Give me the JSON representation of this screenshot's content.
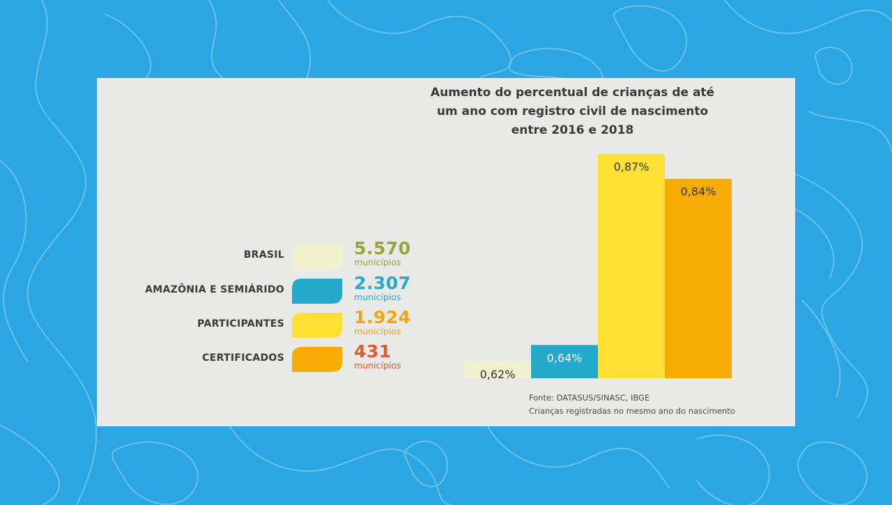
{
  "colors": {
    "background": "#2ba6e3",
    "panel": "#e9e9e8",
    "brasil": "#f1f0cf",
    "amazonia": "#22a9cc",
    "participantes": "#fde033",
    "certificados": "#f8ac06",
    "brasil_text": "#9aa437",
    "amazonia_text": "#26a9cf",
    "participantes_text": "#f3a70c",
    "certificados_text": "#e35a2a"
  },
  "legend": [
    {
      "label": "BRASIL",
      "value": "5.570",
      "unit": "municípios"
    },
    {
      "label": "AMAZÔNIA E SEMIÁRIDO",
      "value": "2.307",
      "unit": "municípios"
    },
    {
      "label": "PARTICIPANTES",
      "value": "1.924",
      "unit": "municípios"
    },
    {
      "label": "CERTIFICADOS",
      "value": "431",
      "unit": "municípios"
    }
  ],
  "chart_data": {
    "type": "bar",
    "title": "Aumento do percentual de crianças de até um ano com registro civil de nascimento entre 2016 e 2018",
    "title_lines": [
      "Aumento do percentual de crianças de até",
      "um ano com registro civil de nascimento",
      "entre 2016 e 2018"
    ],
    "categories": [
      "BRASIL",
      "AMAZÔNIA E SEMIÁRIDO",
      "PARTICIPANTES",
      "CERTIFICADOS"
    ],
    "values": [
      0.62,
      0.64,
      0.87,
      0.84
    ],
    "value_labels": [
      "0,62%",
      "0,64%",
      "0,87%",
      "0,84%"
    ],
    "colors": [
      "#f1f0cf",
      "#22a9cc",
      "#fde033",
      "#f8ac06"
    ],
    "ylim": [
      0.6,
      0.88
    ],
    "xlabel": "",
    "ylabel": "",
    "grid": false
  },
  "source": "Fonte: DATASUS/SINASC, IBGE",
  "note": "Crianças registradas no mesmo ano do nascimento"
}
